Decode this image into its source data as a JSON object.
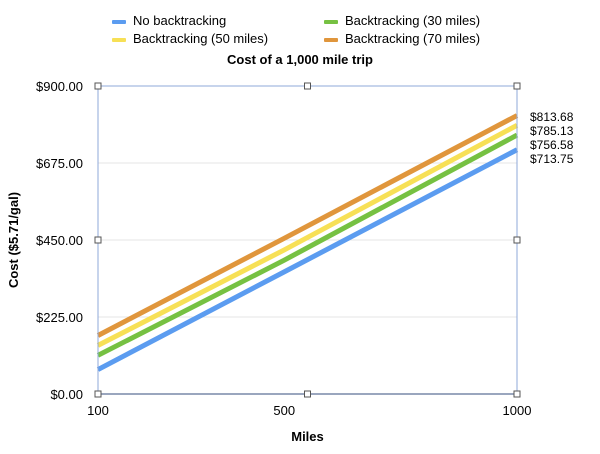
{
  "chart_data": {
    "type": "line",
    "title": "Cost of a 1,000 mile trip",
    "xlabel": "Miles",
    "ylabel": "Cost ($5.71/gal)",
    "x": [
      100,
      500,
      1000
    ],
    "x_tick_labels": [
      "100",
      "500",
      "1000"
    ],
    "ylim": [
      0,
      900
    ],
    "y_tick_labels": [
      "$0.00",
      "$225.00",
      "$450.00",
      "$675.00",
      "$900.00"
    ],
    "grid": true,
    "legend_position": "top",
    "series": [
      {
        "name": "No backtracking",
        "color": "#5b9cf0",
        "values": [
          71.38,
          356.88,
          713.75
        ],
        "end_label": "$713.75"
      },
      {
        "name": "Backtracking (30 miles)",
        "color": "#76c142",
        "values": [
          113,
          391,
          756.58
        ],
        "end_label": "$756.58"
      },
      {
        "name": "Backtracking (50 miles)",
        "color": "#f7e056",
        "values": [
          142,
          421,
          785.13
        ],
        "end_label": "$785.13"
      },
      {
        "name": "Backtracking (70 miles)",
        "color": "#e0963c",
        "values": [
          171,
          455,
          813.68
        ],
        "end_label": "$813.68"
      }
    ]
  }
}
